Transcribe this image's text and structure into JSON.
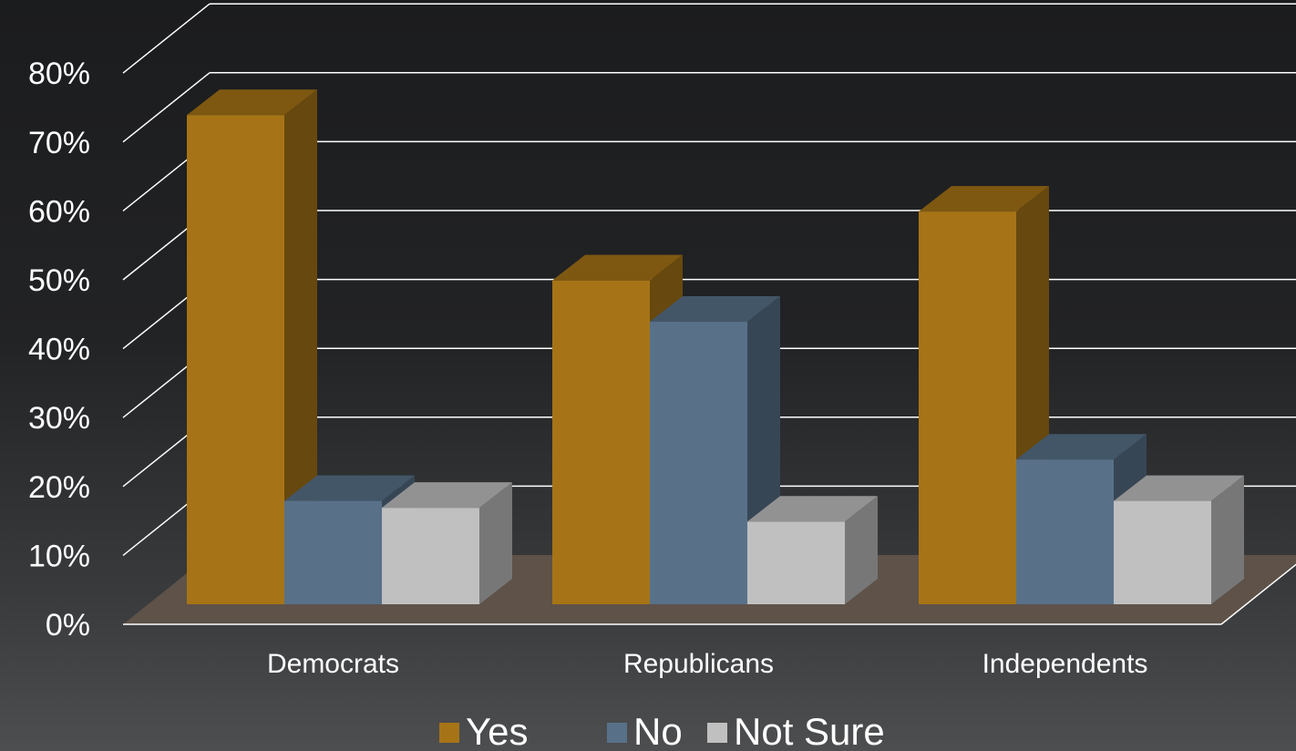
{
  "chart_data": {
    "type": "bar",
    "style": "3d-clustered-column",
    "categories": [
      "Democrats",
      "Republicans",
      "Independents"
    ],
    "series": [
      {
        "name": "Yes",
        "values": [
          71,
          47,
          57
        ],
        "color": "#a67417"
      },
      {
        "name": "No",
        "values": [
          15,
          41,
          21
        ],
        "color": "#587189"
      },
      {
        "name": "Not Sure",
        "values": [
          14,
          12,
          15
        ],
        "color": "#c0c0c0"
      }
    ],
    "ylim": [
      0,
      80
    ],
    "yticks": [
      "0%",
      "10%",
      "20%",
      "30%",
      "40%",
      "50%",
      "60%",
      "70%",
      "80%"
    ],
    "grid": true,
    "legend": "bottom",
    "floor_color": "#5e5249"
  }
}
